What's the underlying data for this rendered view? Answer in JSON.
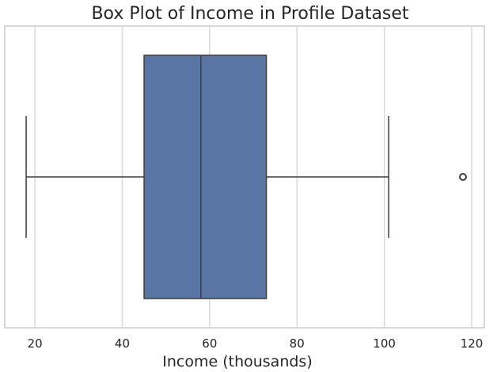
{
  "chart_data": {
    "type": "box",
    "title": "Box Plot of Income in Profile Dataset",
    "xlabel": "Income (thousands)",
    "ylabel": "",
    "xlim": [
      13.1,
      122.9
    ],
    "xticks": [
      20,
      40,
      60,
      80,
      100,
      120
    ],
    "grid": true,
    "orientation": "horizontal",
    "box": {
      "min": 18,
      "q1": 45,
      "median": 58,
      "q3": 73,
      "max": 101,
      "outliers": [
        118
      ]
    },
    "colors": {
      "box_fill": "#5975a4",
      "line": "#3d3d3d",
      "grid": "#d6d6d6"
    }
  }
}
